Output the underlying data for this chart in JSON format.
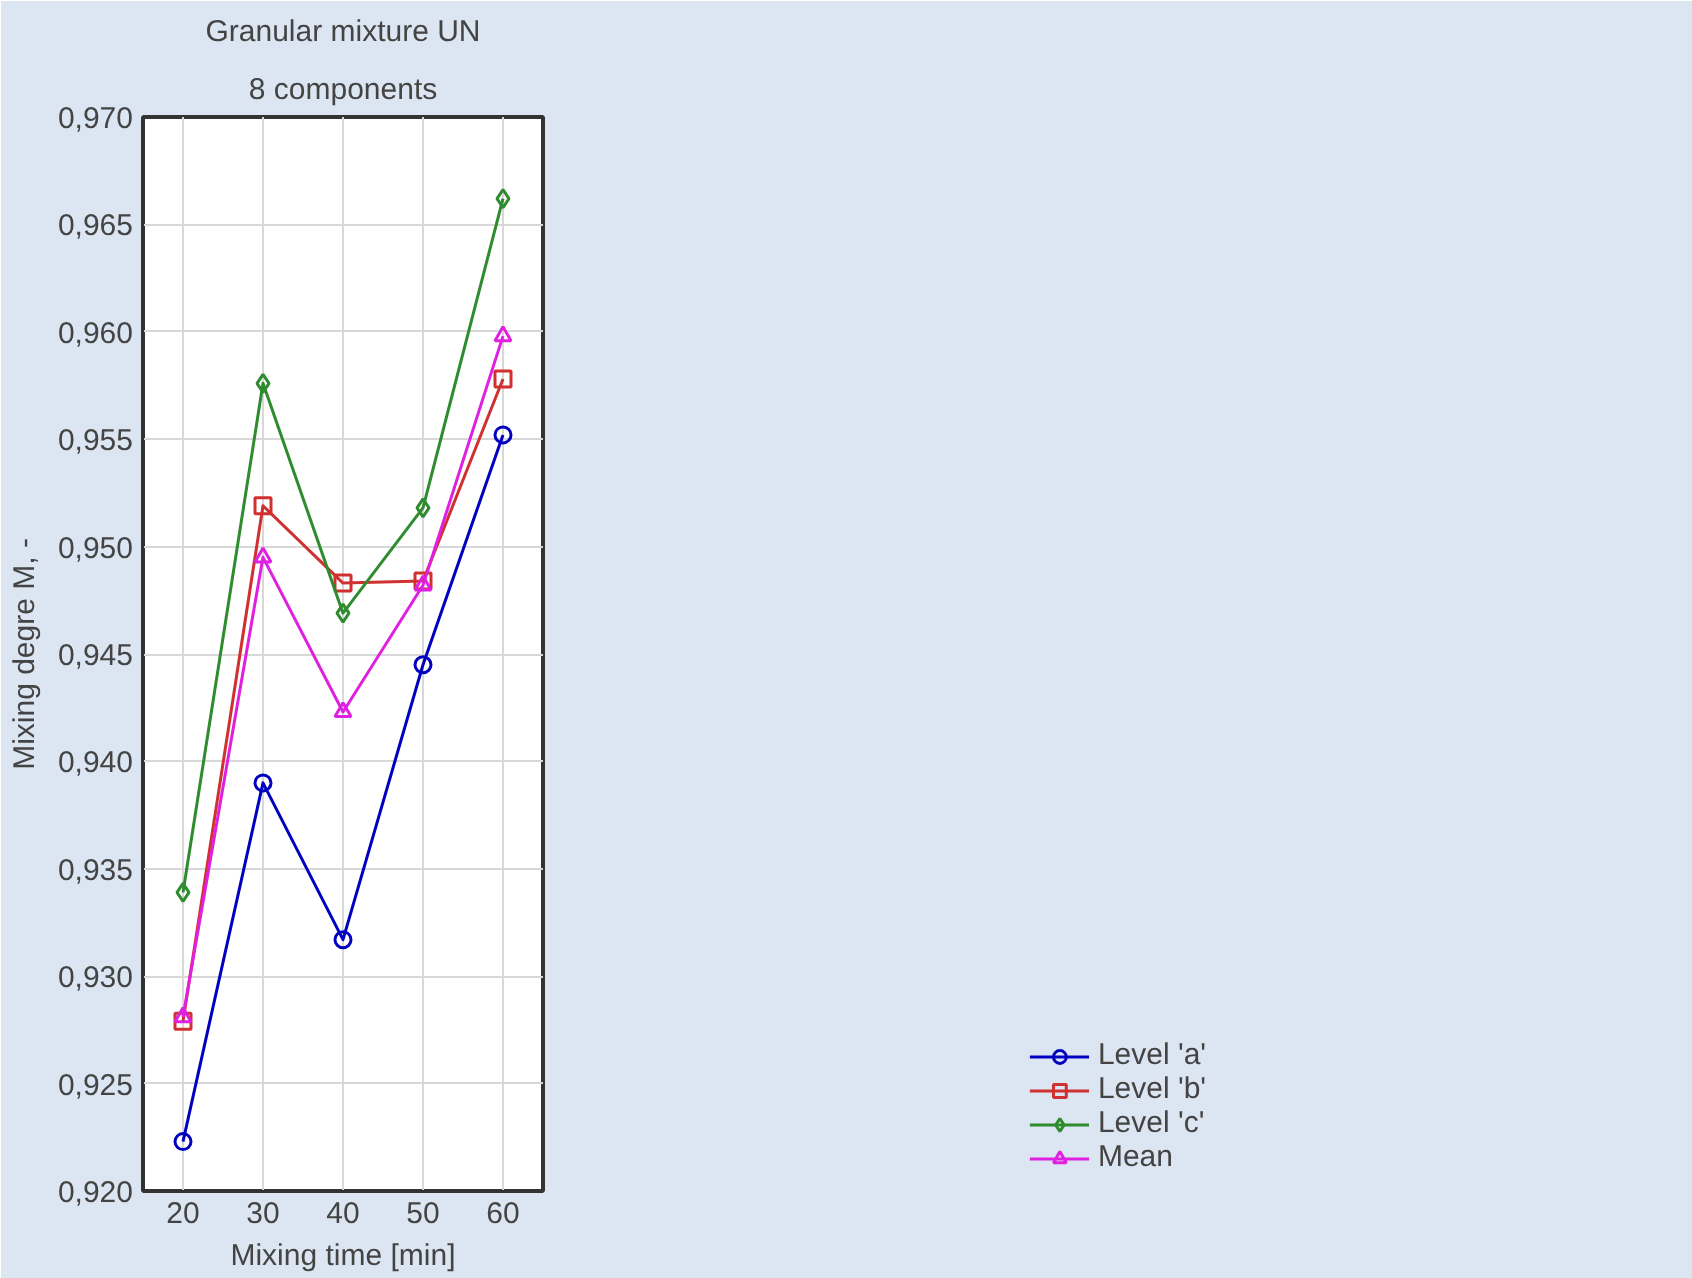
{
  "chart_data": {
    "type": "line",
    "title": "Granular mixture UN",
    "subtitle": "8 components",
    "xlabel": "Mixing time [min]",
    "ylabel": "Mixing degre M, -",
    "x": [
      20,
      30,
      40,
      50,
      60
    ],
    "series": [
      {
        "name": "Level 'a'",
        "color": "#0000c0",
        "marker": "circle",
        "values": [
          0.9223,
          0.939,
          0.9317,
          0.9445,
          0.9552
        ]
      },
      {
        "name": "Level 'b'",
        "color": "#d03030",
        "marker": "square",
        "values": [
          0.9279,
          0.9519,
          0.9483,
          0.9484,
          0.9578
        ]
      },
      {
        "name": "Level 'c'",
        "color": "#2e8b2e",
        "marker": "diamond",
        "values": [
          0.9339,
          0.9576,
          0.9469,
          0.9518,
          0.9662
        ]
      },
      {
        "name": "Mean",
        "color": "#e020e0",
        "marker": "triangle",
        "values": [
          0.9281,
          0.9495,
          0.9423,
          0.9482,
          0.9598
        ]
      }
    ],
    "xlim": [
      15,
      65
    ],
    "xticks": [
      20,
      30,
      40,
      50,
      60
    ],
    "ylim": [
      0.92,
      0.97
    ],
    "yticks": [
      {
        "value": 0.92,
        "label": "0,920"
      },
      {
        "value": 0.925,
        "label": "0,925"
      },
      {
        "value": 0.93,
        "label": "0,930"
      },
      {
        "value": 0.935,
        "label": "0,935"
      },
      {
        "value": 0.94,
        "label": "0,940"
      },
      {
        "value": 0.945,
        "label": "0,945"
      },
      {
        "value": 0.95,
        "label": "0,950"
      },
      {
        "value": 0.955,
        "label": "0,955"
      },
      {
        "value": 0.96,
        "label": "0,960"
      },
      {
        "value": 0.965,
        "label": "0,965"
      },
      {
        "value": 0.97,
        "label": "0,970"
      }
    ],
    "grid": true,
    "legend": "bottom right",
    "line_style": "solid"
  }
}
